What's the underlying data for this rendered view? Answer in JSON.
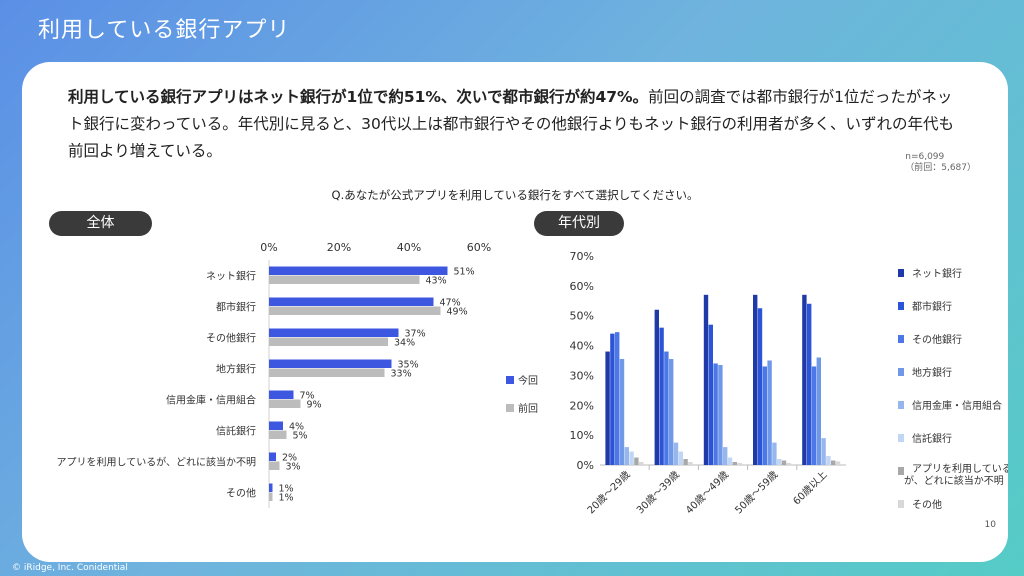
{
  "slide": {
    "title": "利用している銀行アプリ",
    "summary_bold": "利用している銀行アプリはネット銀行が1位で約51%、次いで都市銀行が約47%。",
    "summary_rest": "前回の調査では都市銀行が1位だったがネット銀行に変わっている。年代別に見ると、30代以上は都市銀行やその他銀行よりもネット銀行の利用者が多く、いずれの年代も前回より増えている。",
    "n_line1": "n=6,099",
    "n_line2": "（前回：5,687）",
    "question": "Q.あなたが公式アプリを利用している銀行をすべて選択してください。",
    "footer": "© iRidge, Inc. Conidential",
    "page_number": "10"
  },
  "pills": {
    "left": "全体",
    "right": "年代別"
  },
  "colors": {
    "current": "#3d57e0",
    "previous": "#bcbcbc",
    "age_series": [
      "#1f3aa8",
      "#2b54d6",
      "#4b78e6",
      "#6f99e8",
      "#96b7ee",
      "#c1d5f4",
      "#a8a8a8",
      "#d8d8d8"
    ]
  },
  "chart_data": [
    {
      "type": "bar",
      "orientation": "horizontal",
      "categories": [
        "ネット銀行",
        "都市銀行",
        "その他銀行",
        "地方銀行",
        "信用金庫・信用組合",
        "信託銀行",
        "アプリを利用しているが、どれに該当か不明",
        "その他"
      ],
      "series": [
        {
          "name": "今回",
          "values": [
            51,
            47,
            37,
            35,
            7,
            4,
            2,
            1
          ]
        },
        {
          "name": "前回",
          "values": [
            43,
            49,
            34,
            33,
            9,
            5,
            3,
            1
          ]
        }
      ],
      "xlim": [
        0,
        60
      ],
      "xticks": [
        "0%",
        "20%",
        "40%",
        "60%"
      ],
      "value_suffix": "%",
      "legend": "right"
    },
    {
      "type": "bar",
      "categories": [
        "20歳～29歳",
        "30歳～39歳",
        "40歳～49歳",
        "50歳～59歳",
        "60歳以上"
      ],
      "series": [
        {
          "name": "ネット銀行",
          "values": [
            38,
            52,
            57,
            57,
            57
          ]
        },
        {
          "name": "都市銀行",
          "values": [
            44,
            46,
            47,
            52.5,
            54
          ]
        },
        {
          "name": "その他銀行",
          "values": [
            44.5,
            38,
            34,
            33,
            33
          ]
        },
        {
          "name": "地方銀行",
          "values": [
            35.5,
            35.5,
            33.5,
            35,
            36
          ]
        },
        {
          "name": "信用金庫・信用組合",
          "values": [
            6,
            7.5,
            6,
            7.5,
            9
          ]
        },
        {
          "name": "信託銀行",
          "values": [
            4.5,
            4.5,
            2.5,
            2,
            3
          ]
        },
        {
          "name": "アプリを利用しているが、どれに該当か不明",
          "values": [
            2.5,
            2,
            1,
            1.5,
            1.5
          ]
        },
        {
          "name": "その他",
          "values": [
            1,
            1,
            0.7,
            0.7,
            1.2
          ]
        }
      ],
      "ylim": [
        0,
        70
      ],
      "yticks": [
        "0%",
        "10%",
        "20%",
        "30%",
        "40%",
        "50%",
        "60%",
        "70%"
      ],
      "legend": "right"
    }
  ]
}
